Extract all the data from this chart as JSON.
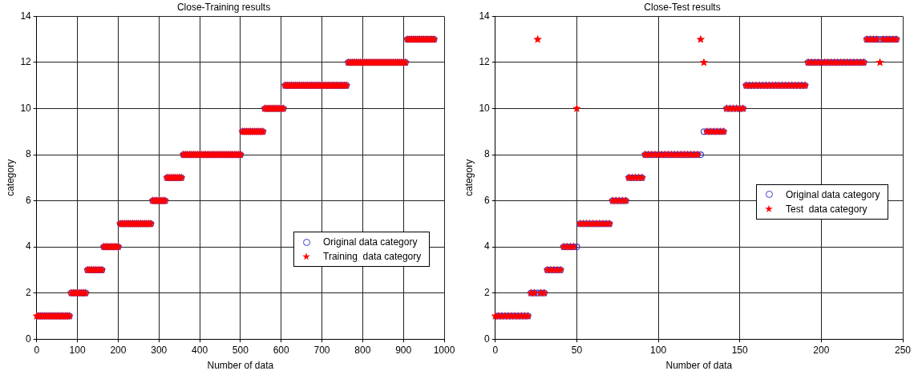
{
  "chart_data": [
    {
      "type": "scatter",
      "title": "Close-Training results",
      "xlabel": "Number of data",
      "ylabel": "category",
      "xlim": [
        0,
        1000
      ],
      "xticks": [
        0,
        100,
        200,
        300,
        400,
        500,
        600,
        700,
        800,
        900,
        1000
      ],
      "ylim": [
        0,
        14
      ],
      "yticks": [
        0,
        2,
        4,
        6,
        8,
        10,
        12,
        14
      ],
      "grid": true,
      "legend": "bottom right",
      "x": [
        0,
        5,
        10,
        15,
        20,
        25,
        30,
        35,
        40,
        45,
        50,
        55,
        60,
        65,
        70,
        75,
        80,
        85,
        90,
        95,
        100,
        105,
        110,
        115,
        120,
        125,
        130,
        135,
        140,
        145,
        150,
        155,
        160,
        165,
        170,
        175,
        180,
        185,
        190,
        195,
        200,
        205,
        210,
        215,
        220,
        225,
        230,
        235,
        240,
        245,
        250,
        255,
        260,
        265,
        270,
        275,
        280,
        285,
        290,
        295,
        300,
        305,
        310,
        315,
        320,
        325,
        330,
        335,
        340,
        345,
        350,
        355,
        360,
        365,
        370,
        375,
        380,
        385,
        390,
        395,
        400,
        405,
        410,
        415,
        420,
        425,
        430,
        435,
        440,
        445,
        450,
        455,
        460,
        465,
        470,
        475,
        480,
        485,
        490,
        495,
        500,
        505,
        510,
        515,
        520,
        525,
        530,
        535,
        540,
        545,
        550,
        555,
        560,
        565,
        570,
        575,
        580,
        585,
        590,
        595,
        600,
        605,
        610,
        615,
        620,
        625,
        630,
        635,
        640,
        645,
        650,
        655,
        660,
        665,
        670,
        675,
        680,
        685,
        690,
        695,
        700,
        705,
        710,
        715,
        720,
        725,
        730,
        735,
        740,
        745,
        750,
        755,
        760,
        765,
        770,
        775,
        780,
        785,
        790,
        795,
        800,
        805,
        810,
        815,
        820,
        825,
        830,
        835,
        840,
        845,
        850,
        855,
        860,
        865,
        870,
        875,
        880,
        885,
        890,
        895,
        900,
        905,
        910,
        915,
        920,
        925,
        930,
        935,
        940,
        945,
        950,
        955,
        960,
        965,
        970,
        975
      ],
      "series": [
        {
          "name": "Original data category",
          "color": "#3c3cc8",
          "marker": "circle",
          "values": [
            1,
            1,
            1,
            1,
            1,
            1,
            1,
            1,
            1,
            1,
            1,
            1,
            1,
            1,
            1,
            1,
            1,
            2,
            2,
            2,
            2,
            2,
            2,
            2,
            2,
            3,
            3,
            3,
            3,
            3,
            3,
            3,
            3,
            4,
            4,
            4,
            4,
            4,
            4,
            4,
            4,
            5,
            5,
            5,
            5,
            5,
            5,
            5,
            5,
            5,
            5,
            5,
            5,
            5,
            5,
            5,
            5,
            6,
            6,
            6,
            6,
            6,
            6,
            6,
            7,
            7,
            7,
            7,
            7,
            7,
            7,
            7,
            8,
            8,
            8,
            8,
            8,
            8,
            8,
            8,
            8,
            8,
            8,
            8,
            8,
            8,
            8,
            8,
            8,
            8,
            8,
            8,
            8,
            8,
            8,
            8,
            8,
            8,
            8,
            8,
            8,
            9,
            9,
            9,
            9,
            9,
            9,
            9,
            9,
            9,
            9,
            9,
            10,
            10,
            10,
            10,
            10,
            10,
            10,
            10,
            10,
            10,
            11,
            11,
            11,
            11,
            11,
            11,
            11,
            11,
            11,
            11,
            11,
            11,
            11,
            11,
            11,
            11,
            11,
            11,
            11,
            11,
            11,
            11,
            11,
            11,
            11,
            11,
            11,
            11,
            11,
            11,
            11,
            12,
            12,
            12,
            12,
            12,
            12,
            12,
            12,
            12,
            12,
            12,
            12,
            12,
            12,
            12,
            12,
            12,
            12,
            12,
            12,
            12,
            12,
            12,
            12,
            12,
            12,
            12,
            12,
            12,
            13,
            13,
            13,
            13,
            13,
            13,
            13,
            13,
            13,
            13,
            13,
            13,
            13,
            13
          ]
        },
        {
          "name": "Training  data category",
          "color": "#ff0000",
          "marker": "star",
          "values": [
            1,
            1,
            1,
            1,
            1,
            1,
            1,
            1,
            1,
            1,
            1,
            1,
            1,
            1,
            1,
            1,
            1,
            2,
            2,
            2,
            2,
            2,
            2,
            2,
            2,
            3,
            3,
            3,
            3,
            3,
            3,
            3,
            3,
            4,
            4,
            4,
            4,
            4,
            4,
            4,
            4,
            5,
            5,
            5,
            5,
            5,
            5,
            5,
            5,
            5,
            5,
            5,
            5,
            5,
            5,
            5,
            5,
            6,
            6,
            6,
            6,
            6,
            6,
            6,
            7,
            7,
            7,
            7,
            7,
            7,
            7,
            7,
            8,
            8,
            8,
            8,
            8,
            8,
            8,
            8,
            8,
            8,
            8,
            8,
            8,
            8,
            8,
            8,
            8,
            8,
            8,
            8,
            8,
            8,
            8,
            8,
            8,
            8,
            8,
            8,
            8,
            9,
            9,
            9,
            9,
            9,
            9,
            9,
            9,
            9,
            9,
            9,
            10,
            10,
            10,
            10,
            10,
            10,
            10,
            10,
            10,
            10,
            11,
            11,
            11,
            11,
            11,
            11,
            11,
            11,
            11,
            11,
            11,
            11,
            11,
            11,
            11,
            11,
            11,
            11,
            11,
            11,
            11,
            11,
            11,
            11,
            11,
            11,
            11,
            11,
            11,
            11,
            11,
            12,
            12,
            12,
            12,
            12,
            12,
            12,
            12,
            12,
            12,
            12,
            12,
            12,
            12,
            12,
            12,
            12,
            12,
            12,
            12,
            12,
            12,
            12,
            12,
            12,
            12,
            12,
            12,
            12,
            13,
            13,
            13,
            13,
            13,
            13,
            13,
            13,
            13,
            13,
            13,
            13,
            13,
            13
          ]
        }
      ]
    },
    {
      "type": "scatter",
      "title": "Close-Test results",
      "xlabel": "Number of data",
      "ylabel": "category",
      "xlim": [
        0,
        250
      ],
      "xticks": [
        0,
        50,
        100,
        150,
        200,
        250
      ],
      "ylim": [
        0,
        14
      ],
      "yticks": [
        0,
        2,
        4,
        6,
        8,
        10,
        12,
        14
      ],
      "grid": true,
      "legend": "right",
      "x": [
        0,
        2,
        4,
        6,
        8,
        10,
        12,
        14,
        16,
        18,
        20,
        22,
        24,
        26,
        28,
        30,
        32,
        34,
        36,
        38,
        40,
        42,
        44,
        46,
        48,
        50,
        52,
        54,
        56,
        58,
        60,
        62,
        64,
        66,
        68,
        70,
        72,
        74,
        76,
        78,
        80,
        82,
        84,
        86,
        88,
        90,
        92,
        94,
        96,
        98,
        100,
        102,
        104,
        106,
        108,
        110,
        112,
        114,
        116,
        118,
        120,
        122,
        124,
        126,
        128,
        130,
        132,
        134,
        136,
        138,
        140,
        142,
        144,
        146,
        148,
        150,
        152,
        154,
        156,
        158,
        160,
        162,
        164,
        166,
        168,
        170,
        172,
        174,
        176,
        178,
        180,
        182,
        184,
        186,
        188,
        190,
        192,
        194,
        196,
        198,
        200,
        202,
        204,
        206,
        208,
        210,
        212,
        214,
        216,
        218,
        220,
        222,
        224,
        226,
        228,
        230,
        232,
        234,
        236,
        238,
        240,
        242,
        244,
        246
      ],
      "series": [
        {
          "name": "Original data category",
          "color": "#3c3cc8",
          "marker": "circle",
          "values": [
            1,
            1,
            1,
            1,
            1,
            1,
            1,
            1,
            1,
            1,
            1,
            2,
            2,
            2,
            2,
            2,
            3,
            3,
            3,
            3,
            3,
            4,
            4,
            4,
            4,
            4,
            5,
            5,
            5,
            5,
            5,
            5,
            5,
            5,
            5,
            5,
            6,
            6,
            6,
            6,
            6,
            7,
            7,
            7,
            7,
            7,
            8,
            8,
            8,
            8,
            8,
            8,
            8,
            8,
            8,
            8,
            8,
            8,
            8,
            8,
            8,
            8,
            8,
            8,
            9,
            9,
            9,
            9,
            9,
            9,
            9,
            10,
            10,
            10,
            10,
            10,
            10,
            11,
            11,
            11,
            11,
            11,
            11,
            11,
            11,
            11,
            11,
            11,
            11,
            11,
            11,
            11,
            11,
            11,
            11,
            11,
            12,
            12,
            12,
            12,
            12,
            12,
            12,
            12,
            12,
            12,
            12,
            12,
            12,
            12,
            12,
            12,
            12,
            12,
            13,
            13,
            13,
            13,
            13,
            13,
            13,
            13,
            13,
            13
          ]
        },
        {
          "name": "Test  data category",
          "color": "#ff0000",
          "marker": "star",
          "values": [
            1,
            1,
            1,
            1,
            1,
            1,
            1,
            1,
            1,
            1,
            1,
            2,
            2,
            13,
            2,
            2,
            3,
            3,
            3,
            3,
            3,
            4,
            4,
            4,
            4,
            10,
            5,
            5,
            5,
            5,
            5,
            5,
            5,
            5,
            5,
            5,
            6,
            6,
            6,
            6,
            6,
            7,
            7,
            7,
            7,
            7,
            8,
            8,
            8,
            8,
            8,
            8,
            8,
            8,
            8,
            8,
            8,
            8,
            8,
            8,
            8,
            8,
            8,
            13,
            12,
            9,
            9,
            9,
            9,
            9,
            9,
            10,
            10,
            10,
            10,
            10,
            10,
            11,
            11,
            11,
            11,
            11,
            11,
            11,
            11,
            11,
            11,
            11,
            11,
            11,
            11,
            11,
            11,
            11,
            11,
            11,
            12,
            12,
            12,
            12,
            12,
            12,
            12,
            12,
            12,
            12,
            12,
            12,
            12,
            12,
            12,
            12,
            12,
            12,
            13,
            13,
            13,
            13,
            12,
            13,
            13,
            13,
            13,
            13
          ]
        }
      ]
    }
  ]
}
